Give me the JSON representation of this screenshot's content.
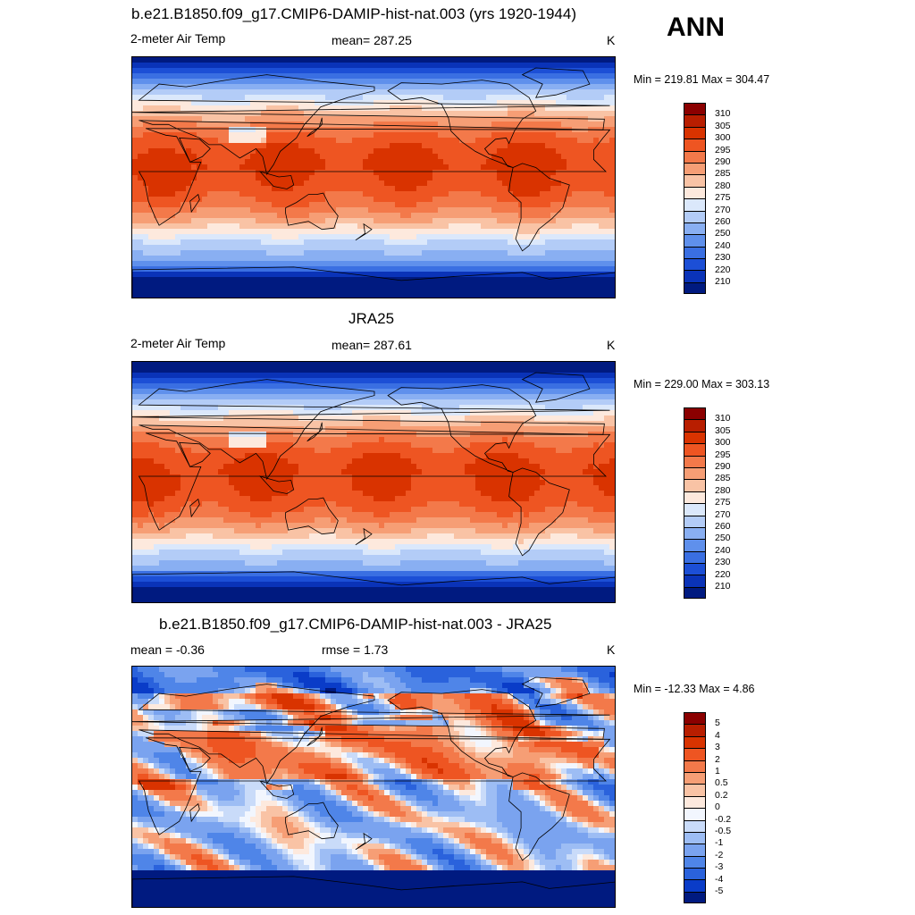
{
  "season": "ANN",
  "panels": [
    {
      "title": "b.e21.B1850.f09_g17.CMIP6-DAMIP-hist-nat.003 (yrs 1920-1944)",
      "left_label": "2-meter Air Temp",
      "center_label": "mean= 287.25",
      "units": "K",
      "minmax": "Min = 219.81 Max = 304.47",
      "kind": "abs",
      "tropic_shift": -4
    },
    {
      "title": "JRA25",
      "left_label": "2-meter Air Temp",
      "center_label": "mean= 287.61",
      "units": "K",
      "minmax": "Min = 229.00 Max = 303.13",
      "kind": "abs",
      "tropic_shift": 0
    },
    {
      "title": "b.e21.B1850.f09_g17.CMIP6-DAMIP-hist-nat.003 - JRA25",
      "left_label": "mean =  -0.36",
      "center_label": "rmse =   1.73",
      "units": "K",
      "minmax": "Min = -12.33 Max =   4.86",
      "kind": "diff",
      "tropic_shift": 0
    }
  ],
  "colorbars": {
    "abs": {
      "labels": [
        "310",
        "305",
        "300",
        "295",
        "290",
        "285",
        "280",
        "275",
        "270",
        "260",
        "250",
        "240",
        "230",
        "220",
        "210"
      ],
      "colors": [
        "#8b0000",
        "#b81e00",
        "#d93300",
        "#ee5522",
        "#f3794a",
        "#f69e75",
        "#f9c3a5",
        "#fde9dd",
        "#dbe8fb",
        "#b3ccf7",
        "#89aff2",
        "#5f90ec",
        "#3a6fe2",
        "#1c4fd6",
        "#0a33b8",
        "#001a80"
      ]
    },
    "diff": {
      "labels": [
        "5",
        "4",
        "3",
        "2",
        "1",
        "0.5",
        "0.2",
        "0",
        "-0.2",
        "-0.5",
        "-1",
        "-2",
        "-3",
        "-4",
        "-5"
      ],
      "colors": [
        "#8b0000",
        "#b81e00",
        "#d93300",
        "#ee5522",
        "#f3794a",
        "#f69e75",
        "#f9c3a5",
        "#fde9dd",
        "#f2f6fe",
        "#c9dbf9",
        "#9dbdf4",
        "#7aa3ef",
        "#4f85e8",
        "#2a62dc",
        "#0a3cc8",
        "#001a80"
      ]
    }
  }
}
